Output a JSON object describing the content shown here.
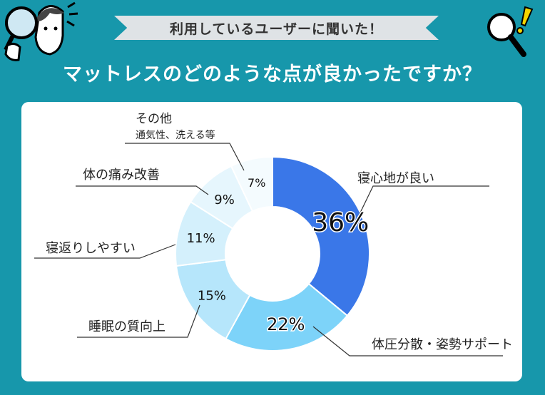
{
  "banner": {
    "text": "利用しているユーザーに聞いた！"
  },
  "headline": {
    "text": "マットレスのどのような点が良かったですか？"
  },
  "chart_data": {
    "type": "pie",
    "donut": true,
    "categories": [
      "寝心地が良い",
      "体圧分散・姿勢サポート",
      "睡眠の質向上",
      "寝返りしやすい",
      "体の痛み改善",
      "その他"
    ],
    "values": [
      36,
      22,
      15,
      11,
      9,
      7
    ],
    "value_labels": [
      "36%",
      "22%",
      "15%",
      "11%",
      "9%",
      "7%"
    ],
    "other_note": "通気性、洗える等",
    "colors": [
      "#3a77e8",
      "#7dd3f9",
      "#b6e6fb",
      "#d4f0fc",
      "#e6f6fd",
      "#f4fbfe"
    ]
  },
  "icons": {
    "left": "magnifier-person-icon",
    "right": "magnifier-exclamation-icon"
  }
}
